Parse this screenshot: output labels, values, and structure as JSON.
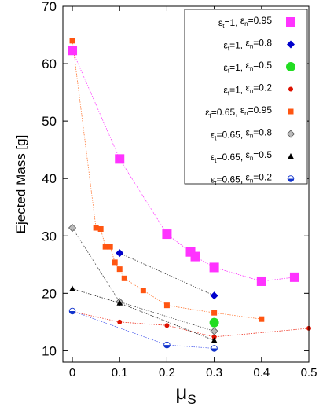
{
  "chart_data": {
    "type": "scatter",
    "xlabel": "μ",
    "xlabel_sub": "S",
    "ylabel": "Ejected Mass [g]",
    "xlim": [
      -0.02,
      0.5
    ],
    "ylim": [
      8,
      70
    ],
    "xticks": [
      "0",
      "0.1",
      "0.2",
      "0.3",
      "0.4",
      "0.5"
    ],
    "xtick_values": [
      0,
      0.1,
      0.2,
      0.3,
      0.4,
      0.5
    ],
    "yticks": [
      "10",
      "20",
      "30",
      "40",
      "50",
      "60",
      "70"
    ],
    "ytick_values": [
      10,
      20,
      30,
      40,
      50,
      60,
      70
    ],
    "grid": false,
    "legend_position": "top-right",
    "series": [
      {
        "name": "εt=1, εn=0.95",
        "parts": [
          {
            "t": "ε"
          },
          {
            "t": "t",
            "sub": true
          },
          {
            "t": "=1, "
          },
          {
            "t": "ε"
          },
          {
            "t": "n",
            "sub": true
          },
          {
            "t": "=0.95"
          }
        ],
        "color": "#ff33ff",
        "line_color": "#ff33ff",
        "marker": "square-big",
        "x": [
          0,
          0.1,
          0.2,
          0.25,
          0.26,
          0.3,
          0.4,
          0.47
        ],
        "y": [
          62.3,
          43.4,
          30.3,
          27.2,
          26.4,
          24.5,
          22.1,
          22.8
        ]
      },
      {
        "name": "εt=1, εn=0.8",
        "parts": [
          {
            "t": "ε"
          },
          {
            "t": "t",
            "sub": true
          },
          {
            "t": "=1, "
          },
          {
            "t": "ε"
          },
          {
            "t": "n",
            "sub": true
          },
          {
            "t": "=0.8"
          }
        ],
        "color": "#0000cc",
        "line_color": "#333333",
        "marker": "diamond",
        "x": [
          0.1,
          0.3
        ],
        "y": [
          27.0,
          19.6
        ]
      },
      {
        "name": "εt=1, εn=0.5",
        "parts": [
          {
            "t": "ε"
          },
          {
            "t": "t",
            "sub": true
          },
          {
            "t": "=1, "
          },
          {
            "t": "ε"
          },
          {
            "t": "n",
            "sub": true
          },
          {
            "t": "=0.5"
          }
        ],
        "color": "#22dd22",
        "line_color": null,
        "marker": "circle-big",
        "x": [
          0.3
        ],
        "y": [
          14.9
        ]
      },
      {
        "name": "εt=1, εn=0.2",
        "parts": [
          {
            "t": "ε"
          },
          {
            "t": "t",
            "sub": true
          },
          {
            "t": "=1, "
          },
          {
            "t": "ε"
          },
          {
            "t": "n",
            "sub": true
          },
          {
            "t": "=0.2"
          }
        ],
        "color": "#dd1100",
        "line_color": "#ee3322",
        "marker": "circle-small",
        "x": [
          0,
          0.1,
          0.2,
          0.3,
          0.5
        ],
        "y": [
          16.8,
          15.0,
          14.4,
          12.4,
          13.9
        ]
      },
      {
        "name": "εt=0.65, εn=0.95",
        "parts": [
          {
            "t": "ε"
          },
          {
            "t": "t",
            "sub": true
          },
          {
            "t": "=0.65, "
          },
          {
            "t": "ε"
          },
          {
            "t": "n",
            "sub": true
          },
          {
            "t": "=0.95"
          }
        ],
        "color": "#ff5511",
        "line_color": "#ff7733",
        "marker": "square-small",
        "x": [
          0,
          0.05,
          0.06,
          0.07,
          0.08,
          0.09,
          0.1,
          0.11,
          0.15,
          0.2,
          0.3,
          0.4
        ],
        "y": [
          64.0,
          31.4,
          31.2,
          28.1,
          28.1,
          25.4,
          24.2,
          22.6,
          20.5,
          17.9,
          16.6,
          15.5
        ]
      },
      {
        "name": "εt=0.65, εn=0.8",
        "parts": [
          {
            "t": "ε"
          },
          {
            "t": "t",
            "sub": true
          },
          {
            "t": "=0.65, "
          },
          {
            "t": "ε"
          },
          {
            "t": "n",
            "sub": true
          },
          {
            "t": "=0.8"
          }
        ],
        "color": "#888888",
        "line_color": "#444444",
        "marker": "diamond-grey",
        "x": [
          0,
          0.1,
          0.3
        ],
        "y": [
          31.4,
          18.5,
          13.4
        ]
      },
      {
        "name": "εt=0.65, εn=0.5",
        "parts": [
          {
            "t": "ε"
          },
          {
            "t": "t",
            "sub": true
          },
          {
            "t": "=0.65, "
          },
          {
            "t": "ε"
          },
          {
            "t": "n",
            "sub": true
          },
          {
            "t": "=0.5"
          }
        ],
        "color": "#000000",
        "line_color": "#222222",
        "marker": "triangle",
        "x": [
          0,
          0.1,
          0.3
        ],
        "y": [
          20.8,
          18.3,
          11.8
        ]
      },
      {
        "name": "εt=0.65, εn=0.2",
        "parts": [
          {
            "t": "ε"
          },
          {
            "t": "t",
            "sub": true
          },
          {
            "t": "=0.65, "
          },
          {
            "t": "ε"
          },
          {
            "t": "n",
            "sub": true
          },
          {
            "t": "=0.2"
          }
        ],
        "color": "#1133cc",
        "line_color": "#5566ee",
        "marker": "half-circle",
        "x": [
          0,
          0.2,
          0.3
        ],
        "y": [
          16.9,
          11.0,
          10.4
        ]
      }
    ]
  }
}
